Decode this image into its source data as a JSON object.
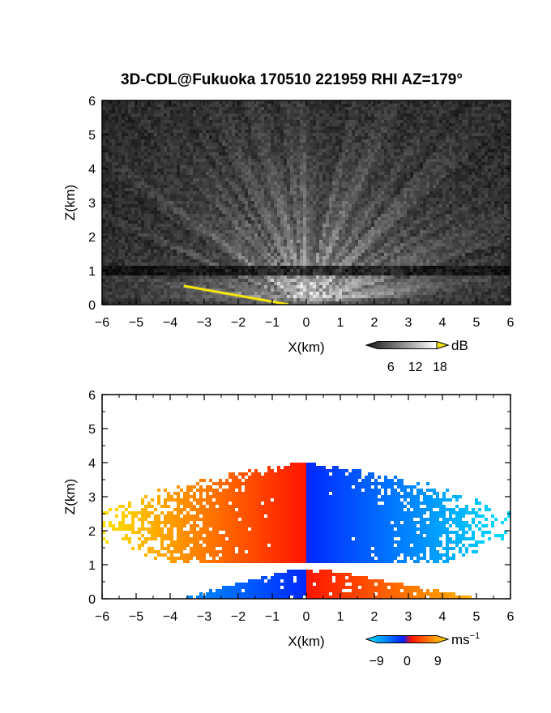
{
  "title": "3D-CDL@Fukuoka 170510 221959 RHI AZ=179°",
  "colors": {
    "background": "#ffffff",
    "ground_mask": "#f4e60a",
    "velocity_negative_far": "#00e8ff",
    "velocity_negative_near": "#0030ff",
    "velocity_positive_near": "#ff2000",
    "velocity_positive_far": "#ffe000"
  },
  "chart_data": [
    {
      "type": "heatmap",
      "name": "intensity",
      "xlabel": "X(km)",
      "ylabel": "Z(km)",
      "xlim": [
        -6,
        6
      ],
      "ylim": [
        0,
        6
      ],
      "xticks": [
        "−6",
        "−5",
        "−4",
        "−3",
        "−2",
        "−1",
        "0",
        "1",
        "2",
        "3",
        "4",
        "5",
        "6"
      ],
      "yticks": [
        "0",
        "1",
        "2",
        "3",
        "4",
        "5",
        "6"
      ],
      "colorbar": {
        "unit": "dB",
        "ticks": [
          "6",
          "12",
          "18"
        ],
        "range": [
          0,
          20
        ],
        "colormap": "grayscale"
      },
      "features": {
        "radar_origin_x_km": 0,
        "dark_layer_height_km": 1.0,
        "ground_clutter_line": {
          "x_km": [
            -3.6,
            -0.5
          ],
          "z_km": [
            0.55,
            0.0
          ]
        }
      }
    },
    {
      "type": "heatmap",
      "name": "doppler_velocity",
      "xlabel": "X(km)",
      "ylabel": "Z(km)",
      "xlim": [
        -6,
        6
      ],
      "ylim": [
        0,
        6
      ],
      "xticks": [
        "−6",
        "−5",
        "−4",
        "−3",
        "−2",
        "−1",
        "0",
        "1",
        "2",
        "3",
        "4",
        "5",
        "6"
      ],
      "yticks": [
        "0",
        "1",
        "2",
        "3",
        "4",
        "5",
        "6"
      ],
      "colorbar": {
        "unit": "ms",
        "unit_exponent": "−1",
        "ticks": [
          "−9",
          "0",
          "9"
        ],
        "range": [
          -12,
          12
        ],
        "colormap": "cyan-blue-red-yellow"
      },
      "features": {
        "upper_layer_z_km": [
          1.0,
          4.0
        ],
        "upper_layer_x_extent_km": [
          -5.9,
          5.9
        ],
        "lower_layer_z_km": [
          0.0,
          0.9
        ],
        "lower_layer_x_extent_km": [
          -3.6,
          4.9
        ],
        "sign_change_x_km": 0
      }
    }
  ]
}
